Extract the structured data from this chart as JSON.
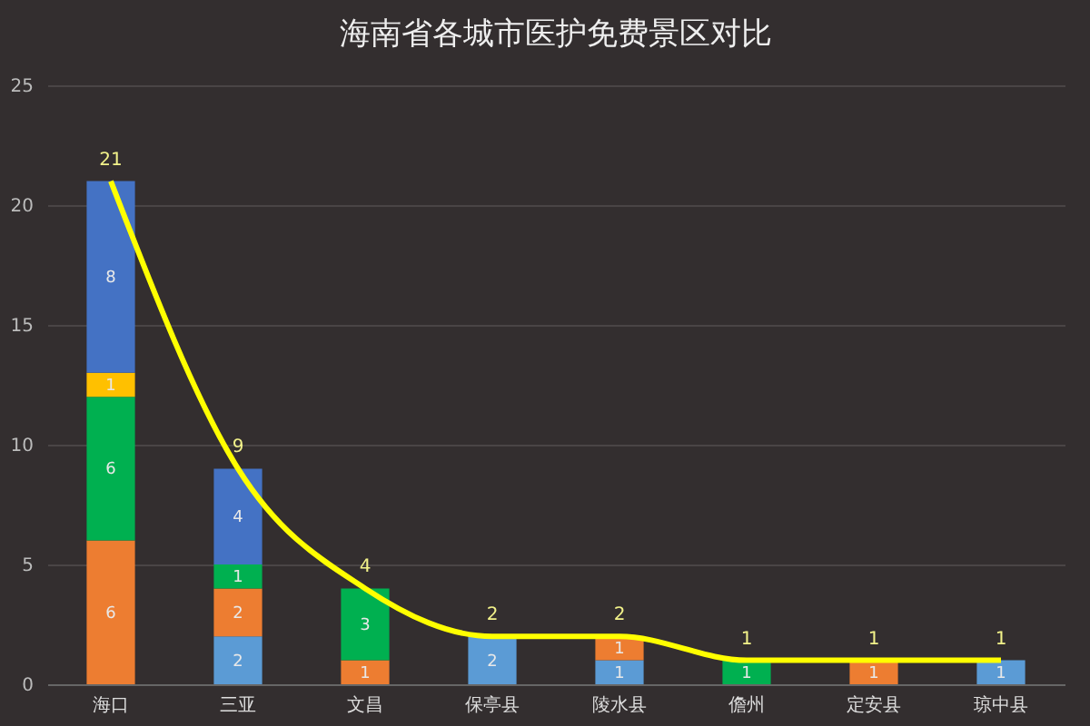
{
  "chart_data": {
    "type": "bar",
    "title": "海南省各城市医护免费景区对比",
    "categories": [
      "海口",
      "三亚",
      "文昌",
      "保亭县",
      "陵水县",
      "儋州",
      "定安县",
      "琼中县"
    ],
    "stacked": true,
    "series": [
      {
        "color": "#5b9bd5",
        "values": [
          null,
          2,
          null,
          2,
          1,
          null,
          null,
          1
        ]
      },
      {
        "color": "#ed7d31",
        "values": [
          6,
          2,
          1,
          null,
          1,
          null,
          1,
          null
        ]
      },
      {
        "color": "#00b050",
        "values": [
          6,
          1,
          3,
          null,
          null,
          1,
          null,
          null
        ]
      },
      {
        "color": "#ffc000",
        "values": [
          1,
          null,
          null,
          null,
          null,
          null,
          null,
          null
        ]
      },
      {
        "color": "#4472c4",
        "values": [
          8,
          4,
          null,
          null,
          null,
          null,
          null,
          null
        ]
      },
      {
        "type": "line",
        "color": "#ffff00",
        "values": [
          21,
          9,
          4,
          2,
          2,
          1,
          1,
          1
        ]
      }
    ],
    "ylim": [
      0,
      25
    ],
    "yticks": [
      0,
      5,
      10,
      15,
      20,
      25
    ],
    "grid": "y",
    "data_labels": true
  }
}
